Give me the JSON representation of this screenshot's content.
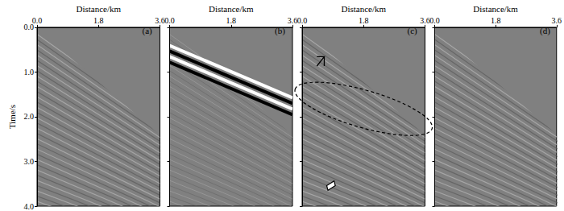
{
  "chart_data": [
    {
      "type": "image",
      "title": "(a)",
      "x_label": "Distance/km",
      "y_label": "Time/s",
      "xlim": [
        0,
        3.6
      ],
      "xticks": [
        {
          "value": 0,
          "label": "0.0"
        },
        {
          "value": 1.8,
          "label": "1.8"
        },
        {
          "value": 3.6,
          "label": "3.6"
        }
      ],
      "ylim": [
        0,
        4
      ],
      "yticks": [
        {
          "value": 0,
          "label": "0.0"
        },
        {
          "value": 1,
          "label": "1.0"
        },
        {
          "value": 2,
          "label": "2.0"
        },
        {
          "value": 3,
          "label": "3.0"
        },
        {
          "value": 4,
          "label": "4.0"
        }
      ]
    },
    {
      "type": "image",
      "title": "(b)",
      "x_label": "Distance/km",
      "tick_labels": "x",
      "xlim": [
        0,
        3.6
      ],
      "xticks": [
        {
          "value": 0,
          "label": "0.0"
        },
        {
          "value": 1.8,
          "label": "1.8"
        },
        {
          "value": 3.6,
          "label": "3.6"
        }
      ],
      "ylim": [
        0,
        4
      ],
      "yticks": [
        0,
        1,
        2,
        3,
        4
      ]
    },
    {
      "type": "image",
      "title": "(c)",
      "x_label": "Distance/km",
      "tick_labels": "x",
      "xlim": [
        0,
        3.6
      ],
      "xticks": [
        {
          "value": 0,
          "label": "0.0"
        },
        {
          "value": 1.8,
          "label": "1.8"
        },
        {
          "value": 3.6,
          "label": "3.6"
        }
      ],
      "ylim": [
        0,
        4
      ],
      "yticks": [
        0,
        1,
        2,
        3,
        4
      ]
    },
    {
      "type": "image",
      "title": "(d)",
      "x_label": "Distance/km",
      "tick_labels": "x",
      "xlim": [
        0,
        3.6
      ],
      "xticks": [
        {
          "value": 0,
          "label": "0.0"
        },
        {
          "value": 1.8,
          "label": "1.8"
        },
        {
          "value": 3.6,
          "label": "3.6"
        }
      ],
      "ylim": [
        0,
        4
      ],
      "yticks": [
        0,
        1,
        2,
        3,
        4
      ]
    }
  ]
}
